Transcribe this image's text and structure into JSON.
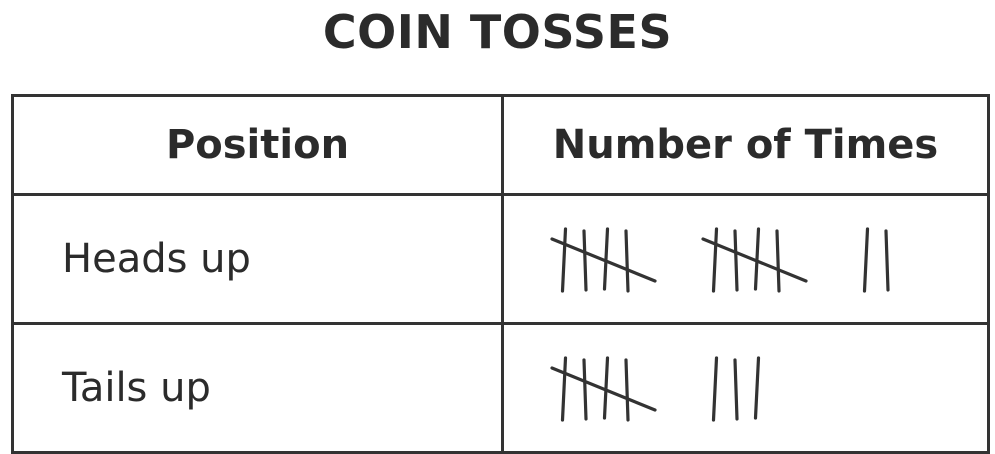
{
  "chart_data": {
    "type": "table",
    "title": "COIN TOSSES",
    "columns": [
      "Position",
      "Number of Times"
    ],
    "rows": [
      {
        "label": "Heads up",
        "tally": 12
      },
      {
        "label": "Tails up",
        "tally": 8
      }
    ]
  }
}
